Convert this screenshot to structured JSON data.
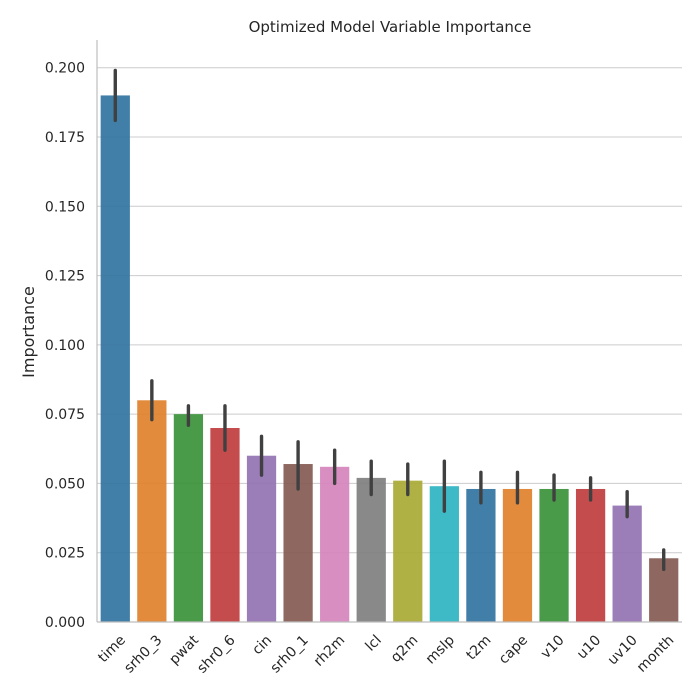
{
  "chart_data": {
    "type": "bar",
    "title": "Optimized Model Variable Importance",
    "xlabel": "",
    "ylabel": "Importance",
    "ylim": [
      0,
      0.21
    ],
    "yticks": [
      "0.000",
      "0.025",
      "0.050",
      "0.075",
      "0.100",
      "0.125",
      "0.150",
      "0.175",
      "0.200"
    ],
    "grid": true,
    "categories": [
      "time",
      "srh0_3",
      "pwat",
      "shr0_6",
      "cin",
      "srh0_1",
      "rh2m",
      "lcl",
      "q2m",
      "mslp",
      "t2m",
      "cape",
      "v10",
      "u10",
      "uv10",
      "month"
    ],
    "values": [
      0.19,
      0.08,
      0.075,
      0.07,
      0.06,
      0.057,
      0.056,
      0.052,
      0.051,
      0.049,
      0.048,
      0.048,
      0.048,
      0.048,
      0.042,
      0.023
    ],
    "error_low": [
      0.181,
      0.073,
      0.071,
      0.062,
      0.053,
      0.048,
      0.05,
      0.046,
      0.046,
      0.04,
      0.043,
      0.043,
      0.044,
      0.044,
      0.038,
      0.019
    ],
    "error_high": [
      0.199,
      0.087,
      0.078,
      0.078,
      0.067,
      0.065,
      0.062,
      0.058,
      0.057,
      0.058,
      0.054,
      0.054,
      0.053,
      0.052,
      0.047,
      0.026
    ],
    "colors": [
      "#3274a1",
      "#e1812c",
      "#3a923a",
      "#c03d3e",
      "#9372b2",
      "#845b53",
      "#d684bd",
      "#7f7f7f",
      "#a9aa35",
      "#2eb3c1",
      "#3274a1",
      "#e1812c",
      "#3a923a",
      "#c03d3e",
      "#9372b2",
      "#845b53"
    ]
  }
}
